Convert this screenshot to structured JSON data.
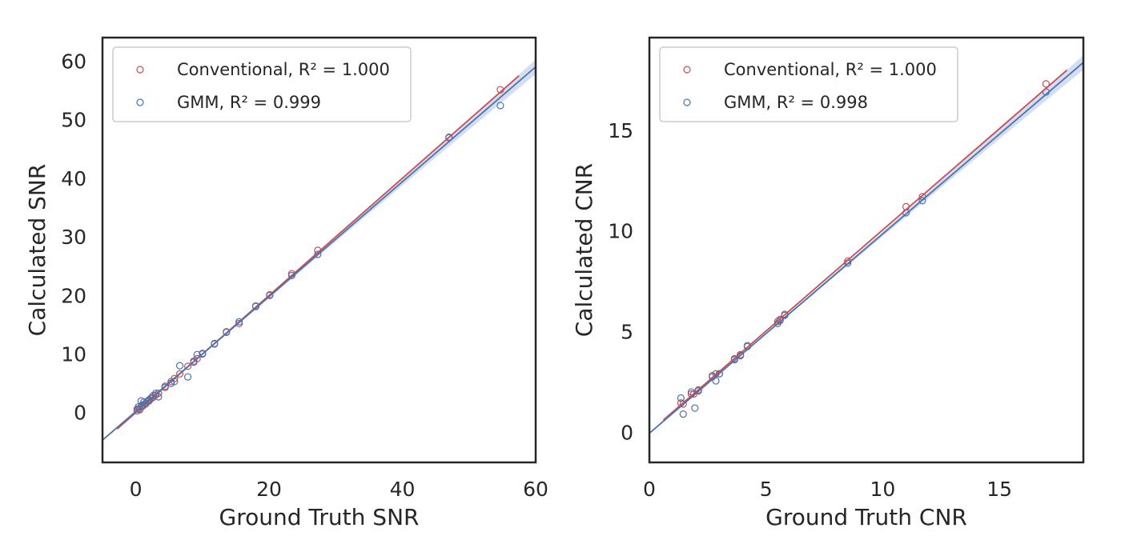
{
  "colors": {
    "conventional": "#c44e52",
    "gmm": "#4c72b0",
    "frame": "#262626",
    "ci_band": "#c9d6ec"
  },
  "chart_data": [
    {
      "type": "scatter",
      "xlabel": "Ground Truth SNR",
      "ylabel": "Calculated SNR",
      "xlim": [
        -5,
        60
      ],
      "ylim": [
        -8.5,
        64
      ],
      "xticks": [
        0,
        20,
        40,
        60
      ],
      "yticks": [
        0,
        10,
        20,
        30,
        40,
        50,
        60
      ],
      "grid": false,
      "legend_position": "upper-left",
      "series": [
        {
          "key": "conventional",
          "legend_prefix": "Conventional, ",
          "legend_r2": "R² = 1.000",
          "fit": {
            "x0": -2.8,
            "x1": 57.5,
            "slope": 1.0,
            "intercept": 0.0
          },
          "points": [
            [
              0.2,
              0.3
            ],
            [
              0.4,
              0.6
            ],
            [
              0.6,
              0.5
            ],
            [
              0.8,
              1.0
            ],
            [
              1.0,
              1.1
            ],
            [
              1.2,
              1.3
            ],
            [
              1.5,
              1.6
            ],
            [
              1.8,
              1.9
            ],
            [
              2.0,
              2.0
            ],
            [
              2.3,
              2.4
            ],
            [
              2.6,
              2.6
            ],
            [
              3.0,
              3.0
            ],
            [
              3.4,
              3.3
            ],
            [
              4.4,
              4.5
            ],
            [
              5.3,
              5.3
            ],
            [
              5.8,
              5.8
            ],
            [
              6.6,
              6.6
            ],
            [
              7.8,
              7.9
            ],
            [
              8.7,
              8.8
            ],
            [
              9.2,
              9.2
            ],
            [
              10.0,
              10.1
            ],
            [
              11.8,
              11.8
            ],
            [
              13.6,
              13.7
            ],
            [
              15.5,
              15.2
            ],
            [
              18.0,
              18.1
            ],
            [
              20.1,
              20.1
            ],
            [
              23.4,
              23.7
            ],
            [
              27.3,
              27.7
            ],
            [
              47.0,
              47.0
            ],
            [
              54.7,
              55.1
            ]
          ]
        },
        {
          "key": "gmm",
          "legend_prefix": "GMM, ",
          "legend_r2": "R² = 0.999",
          "fit": {
            "x0": -5,
            "x1": 60,
            "slope": 0.98,
            "intercept": 0.2
          },
          "points": [
            [
              0.2,
              0.6
            ],
            [
              0.4,
              1.0
            ],
            [
              0.6,
              0.5
            ],
            [
              0.8,
              2.0
            ],
            [
              1.0,
              1.3
            ],
            [
              1.2,
              1.8
            ],
            [
              1.5,
              1.5
            ],
            [
              1.8,
              2.0
            ],
            [
              2.0,
              2.2
            ],
            [
              2.3,
              2.5
            ],
            [
              2.6,
              2.9
            ],
            [
              3.0,
              3.3
            ],
            [
              3.4,
              2.7
            ],
            [
              4.4,
              4.3
            ],
            [
              5.3,
              5.0
            ],
            [
              5.8,
              5.3
            ],
            [
              6.6,
              8.0
            ],
            [
              7.8,
              6.1
            ],
            [
              8.7,
              8.6
            ],
            [
              9.2,
              9.9
            ],
            [
              10.0,
              10.0
            ],
            [
              11.8,
              11.7
            ],
            [
              13.6,
              13.8
            ],
            [
              15.5,
              15.5
            ],
            [
              18.0,
              18.2
            ],
            [
              20.1,
              20.0
            ],
            [
              23.4,
              23.4
            ],
            [
              27.3,
              27.0
            ],
            [
              47.0,
              46.9
            ],
            [
              54.7,
              52.4
            ]
          ]
        }
      ]
    },
    {
      "type": "scatter",
      "xlabel": "Ground Truth CNR",
      "ylabel": "Calculated CNR",
      "xlim": [
        0,
        18.6
      ],
      "ylim": [
        -1.5,
        19.6
      ],
      "xticks": [
        0,
        5,
        10,
        15
      ],
      "yticks": [
        0,
        5,
        10,
        15
      ],
      "grid": false,
      "legend_position": "upper-left",
      "series": [
        {
          "key": "conventional",
          "legend_prefix": "Conventional, ",
          "legend_r2": "R² = 1.000",
          "fit": {
            "x0": 0.6,
            "x1": 17.9,
            "slope": 1.005,
            "intercept": 0.0
          },
          "points": [
            [
              1.35,
              1.45
            ],
            [
              1.45,
              1.4
            ],
            [
              1.8,
              1.9
            ],
            [
              1.9,
              1.9
            ],
            [
              2.1,
              2.05
            ],
            [
              2.7,
              2.75
            ],
            [
              2.85,
              2.9
            ],
            [
              3.0,
              2.9
            ],
            [
              3.65,
              3.6
            ],
            [
              3.9,
              3.85
            ],
            [
              4.2,
              4.25
            ],
            [
              5.5,
              5.5
            ],
            [
              5.6,
              5.55
            ],
            [
              5.8,
              5.85
            ],
            [
              8.5,
              8.5
            ],
            [
              11.0,
              11.2
            ],
            [
              11.7,
              11.7
            ],
            [
              17.0,
              17.3
            ]
          ]
        },
        {
          "key": "gmm",
          "legend_prefix": "GMM, ",
          "legend_r2": "R² = 0.998",
          "fit": {
            "x0": 0,
            "x1": 18.6,
            "slope": 0.99,
            "intercept": -0.05
          },
          "points": [
            [
              1.35,
              1.7
            ],
            [
              1.45,
              0.9
            ],
            [
              1.8,
              2.0
            ],
            [
              1.95,
              1.2
            ],
            [
              2.1,
              2.1
            ],
            [
              2.7,
              2.8
            ],
            [
              2.85,
              2.55
            ],
            [
              3.0,
              2.9
            ],
            [
              3.65,
              3.65
            ],
            [
              3.9,
              3.8
            ],
            [
              4.2,
              4.3
            ],
            [
              5.5,
              5.4
            ],
            [
              5.6,
              5.6
            ],
            [
              5.8,
              5.8
            ],
            [
              8.5,
              8.4
            ],
            [
              11.0,
              10.9
            ],
            [
              11.7,
              11.5
            ],
            [
              17.0,
              16.9
            ]
          ]
        }
      ]
    }
  ]
}
